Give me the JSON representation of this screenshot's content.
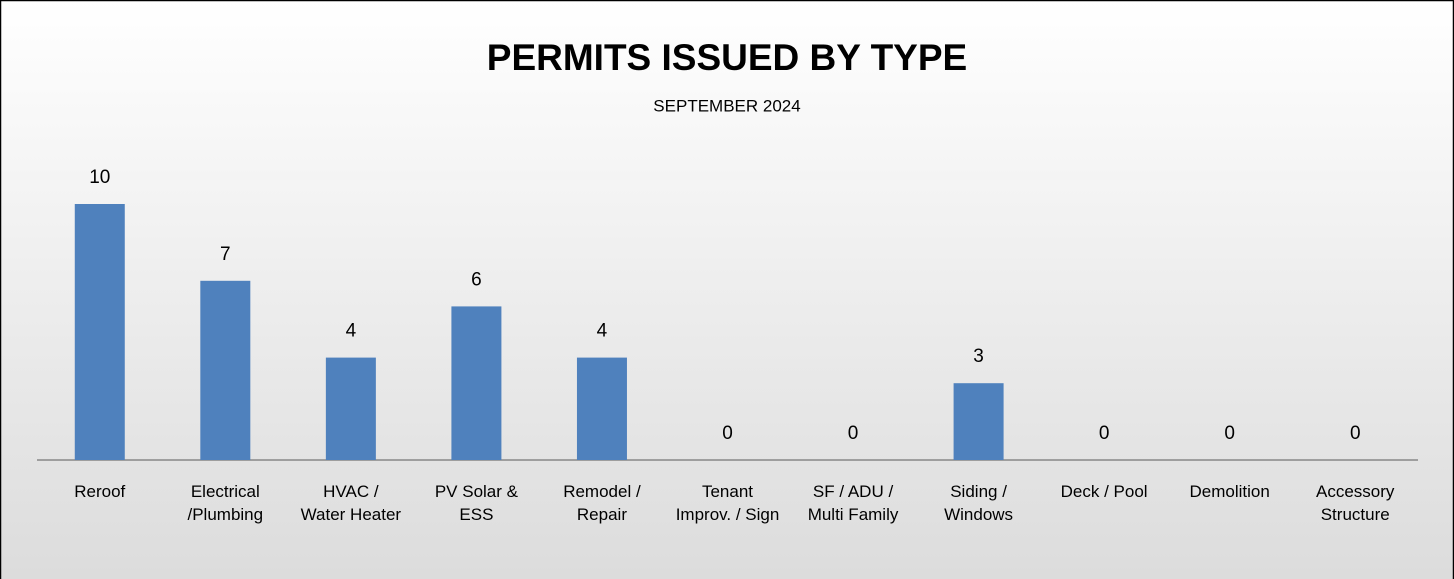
{
  "chart_data": {
    "type": "bar",
    "title": "PERMITS ISSUED BY TYPE",
    "subtitle": "SEPTEMBER 2024",
    "categories": [
      "Reroof",
      "Electrical /Plumbing",
      "HVAC / Water Heater",
      "PV Solar & ESS",
      "Remodel / Repair",
      "Tenant Improv. / Sign",
      "SF / ADU / Multi Family",
      "Siding / Windows",
      "Deck / Pool",
      "Demolition",
      "Accessory Structure"
    ],
    "values": [
      10,
      7,
      4,
      6,
      4,
      0,
      0,
      3,
      0,
      0,
      0
    ],
    "color": "#4f81bd",
    "ylim": [
      0,
      10
    ]
  }
}
